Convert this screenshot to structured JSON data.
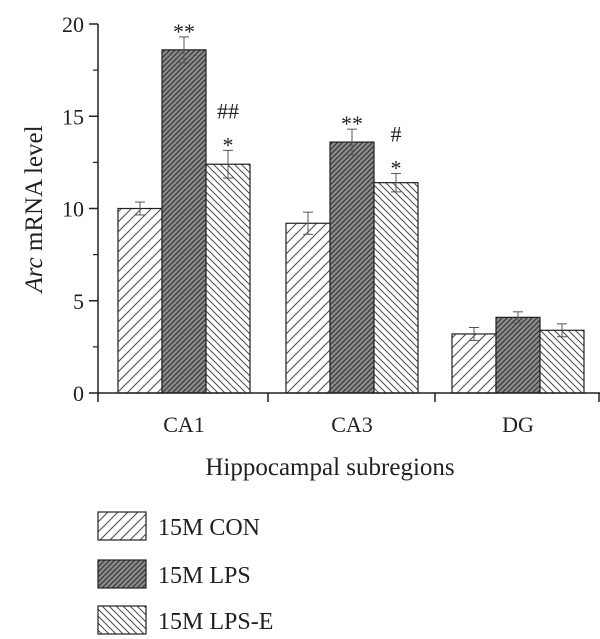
{
  "chart_data": {
    "type": "bar",
    "categories": [
      "CA1",
      "CA3",
      "DG"
    ],
    "series": [
      {
        "name": "15M CON",
        "values": [
          10.0,
          9.2,
          3.2
        ],
        "errors": [
          0.35,
          0.6,
          0.35
        ],
        "pattern": "light-hatch",
        "fill": "#ffffff"
      },
      {
        "name": "15M LPS",
        "values": [
          18.6,
          13.6,
          4.1
        ],
        "errors": [
          0.7,
          0.7,
          0.3
        ],
        "pattern": "dense-hatch",
        "fill": "#8c8c8c"
      },
      {
        "name": "15M LPS-E",
        "values": [
          12.4,
          11.4,
          3.4
        ],
        "errors": [
          0.75,
          0.5,
          0.35
        ],
        "pattern": "back-hatch",
        "fill": "#ffffff"
      }
    ],
    "annotations": [
      {
        "category": "CA1",
        "series": "15M LPS",
        "text": "**"
      },
      {
        "category": "CA1",
        "series": "15M LPS-E",
        "text": "##"
      },
      {
        "category": "CA1",
        "series": "15M LPS-E",
        "text": "*"
      },
      {
        "category": "CA3",
        "series": "15M LPS",
        "text": "**"
      },
      {
        "category": "CA3",
        "series": "15M LPS-E",
        "text": "#"
      },
      {
        "category": "CA3",
        "series": "15M LPS-E",
        "text": "*"
      }
    ],
    "ylabel_italic": "Arc",
    "ylabel_rest": " mRNA level",
    "xlabel": "Hippocampal subregions",
    "ylim": [
      0,
      20
    ],
    "yticks": [
      0,
      5,
      10,
      15,
      20
    ],
    "legend_position": "bottom-left",
    "grid": false
  }
}
